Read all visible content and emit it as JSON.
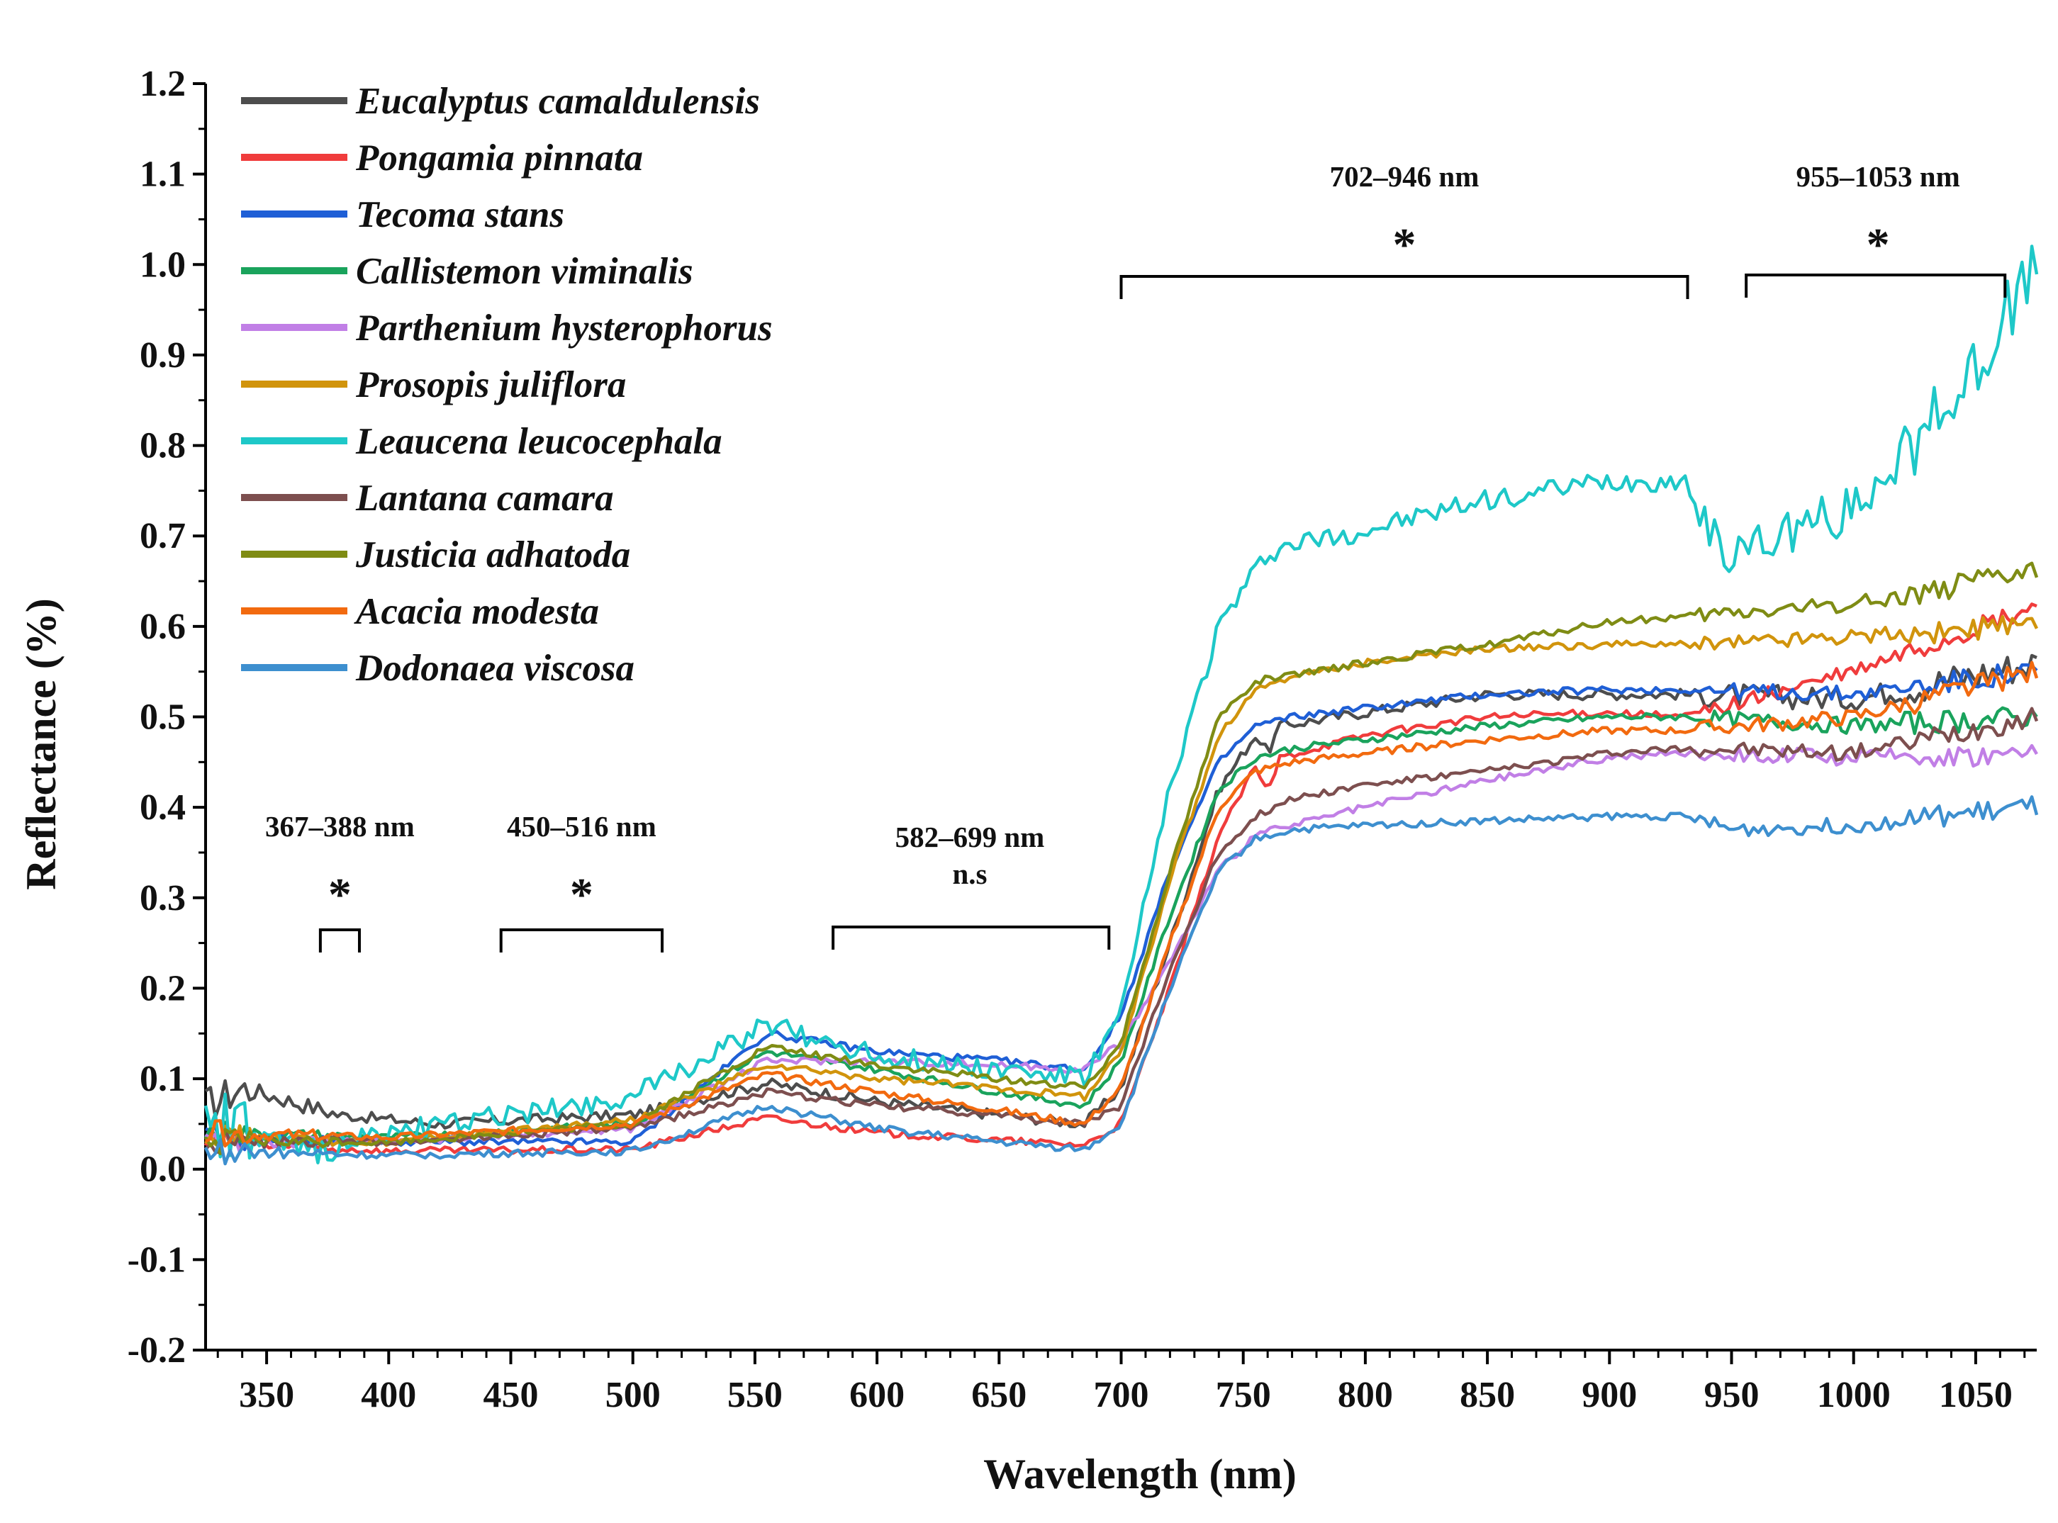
{
  "chart_data": {
    "type": "line",
    "title": "",
    "xlabel": "Wavelength (nm)",
    "ylabel": "Reflectance (%)",
    "xlim": [
      325,
      1075
    ],
    "ylim": [
      -0.2,
      1.2
    ],
    "xticks": [
      350,
      400,
      450,
      500,
      550,
      600,
      650,
      700,
      750,
      800,
      850,
      900,
      950,
      1000,
      1050
    ],
    "yticks": [
      "-0.2",
      "-0.1",
      "0.0",
      "0.1",
      "0.2",
      "0.3",
      "0.4",
      "0.5",
      "0.6",
      "0.7",
      "0.8",
      "0.9",
      "1.0",
      "1.1",
      "1.2"
    ],
    "legend_position": "top-left",
    "series": [
      {
        "name": "Eucalyptus camaldulensis",
        "color": "#4d4d4d",
        "noise": 0.006,
        "points": [
          [
            325,
            0.07
          ],
          [
            340,
            0.09
          ],
          [
            380,
            0.06
          ],
          [
            420,
            0.05
          ],
          [
            500,
            0.06
          ],
          [
            555,
            0.095
          ],
          [
            600,
            0.075
          ],
          [
            650,
            0.06
          ],
          [
            685,
            0.05
          ],
          [
            700,
            0.09
          ],
          [
            720,
            0.25
          ],
          [
            740,
            0.42
          ],
          [
            755,
            0.48
          ],
          [
            760,
            0.46
          ],
          [
            765,
            0.49
          ],
          [
            800,
            0.505
          ],
          [
            850,
            0.525
          ],
          [
            900,
            0.525
          ],
          [
            930,
            0.525
          ],
          [
            1000,
            0.52
          ],
          [
            1075,
            0.56
          ]
        ]
      },
      {
        "name": "Pongamia pinnata",
        "color": "#f03c3c",
        "noise": 0.004,
        "points": [
          [
            325,
            0.03
          ],
          [
            360,
            0.025
          ],
          [
            400,
            0.02
          ],
          [
            500,
            0.022
          ],
          [
            555,
            0.057
          ],
          [
            600,
            0.04
          ],
          [
            650,
            0.032
          ],
          [
            685,
            0.027
          ],
          [
            700,
            0.05
          ],
          [
            720,
            0.2
          ],
          [
            740,
            0.37
          ],
          [
            755,
            0.445
          ],
          [
            760,
            0.415
          ],
          [
            765,
            0.455
          ],
          [
            800,
            0.48
          ],
          [
            850,
            0.5
          ],
          [
            900,
            0.505
          ],
          [
            930,
            0.5
          ],
          [
            1000,
            0.55
          ],
          [
            1075,
            0.62
          ]
        ]
      },
      {
        "name": "Tecoma stans",
        "color": "#1f5fd6",
        "noise": 0.004,
        "points": [
          [
            325,
            0.035
          ],
          [
            400,
            0.03
          ],
          [
            500,
            0.03
          ],
          [
            555,
            0.15
          ],
          [
            600,
            0.13
          ],
          [
            650,
            0.12
          ],
          [
            685,
            0.11
          ],
          [
            700,
            0.17
          ],
          [
            720,
            0.33
          ],
          [
            740,
            0.45
          ],
          [
            755,
            0.49
          ],
          [
            770,
            0.5
          ],
          [
            800,
            0.51
          ],
          [
            850,
            0.525
          ],
          [
            900,
            0.53
          ],
          [
            930,
            0.53
          ],
          [
            1000,
            0.525
          ],
          [
            1075,
            0.55
          ]
        ]
      },
      {
        "name": "Callistemon viminalis",
        "color": "#1aa35c",
        "noise": 0.004,
        "points": [
          [
            325,
            0.04
          ],
          [
            400,
            0.035
          ],
          [
            500,
            0.05
          ],
          [
            555,
            0.13
          ],
          [
            600,
            0.11
          ],
          [
            650,
            0.085
          ],
          [
            685,
            0.07
          ],
          [
            700,
            0.12
          ],
          [
            720,
            0.28
          ],
          [
            740,
            0.42
          ],
          [
            755,
            0.455
          ],
          [
            770,
            0.465
          ],
          [
            800,
            0.475
          ],
          [
            850,
            0.49
          ],
          [
            900,
            0.5
          ],
          [
            930,
            0.5
          ],
          [
            1000,
            0.49
          ],
          [
            1075,
            0.5
          ]
        ]
      },
      {
        "name": "Parthenium hysterophorus",
        "color": "#c17fe6",
        "noise": 0.004,
        "points": [
          [
            325,
            0.03
          ],
          [
            400,
            0.03
          ],
          [
            500,
            0.045
          ],
          [
            555,
            0.12
          ],
          [
            600,
            0.12
          ],
          [
            650,
            0.115
          ],
          [
            685,
            0.11
          ],
          [
            700,
            0.14
          ],
          [
            720,
            0.23
          ],
          [
            740,
            0.33
          ],
          [
            755,
            0.37
          ],
          [
            770,
            0.38
          ],
          [
            800,
            0.4
          ],
          [
            850,
            0.43
          ],
          [
            900,
            0.455
          ],
          [
            930,
            0.46
          ],
          [
            1000,
            0.455
          ],
          [
            1075,
            0.46
          ]
        ]
      },
      {
        "name": "Prosopis juliflora",
        "color": "#d1940c",
        "noise": 0.004,
        "points": [
          [
            325,
            0.035
          ],
          [
            400,
            0.03
          ],
          [
            500,
            0.055
          ],
          [
            555,
            0.115
          ],
          [
            600,
            0.1
          ],
          [
            650,
            0.09
          ],
          [
            685,
            0.08
          ],
          [
            700,
            0.13
          ],
          [
            720,
            0.32
          ],
          [
            740,
            0.48
          ],
          [
            755,
            0.53
          ],
          [
            770,
            0.545
          ],
          [
            800,
            0.56
          ],
          [
            850,
            0.575
          ],
          [
            900,
            0.58
          ],
          [
            930,
            0.58
          ],
          [
            1000,
            0.59
          ],
          [
            1075,
            0.6
          ]
        ]
      },
      {
        "name": "Leaucena leucocephala",
        "color": "#1ec8c8",
        "noise": 0.012,
        "points": [
          [
            325,
            0.05
          ],
          [
            360,
            0.02
          ],
          [
            400,
            0.04
          ],
          [
            450,
            0.06
          ],
          [
            500,
            0.08
          ],
          [
            555,
            0.16
          ],
          [
            600,
            0.125
          ],
          [
            650,
            0.11
          ],
          [
            685,
            0.1
          ],
          [
            700,
            0.17
          ],
          [
            720,
            0.42
          ],
          [
            740,
            0.6
          ],
          [
            755,
            0.66
          ],
          [
            760,
            0.68
          ],
          [
            770,
            0.69
          ],
          [
            800,
            0.705
          ],
          [
            850,
            0.74
          ],
          [
            900,
            0.76
          ],
          [
            930,
            0.76
          ],
          [
            950,
            0.68
          ],
          [
            1000,
            0.73
          ],
          [
            1040,
            0.85
          ],
          [
            1075,
            1.0
          ]
        ]
      },
      {
        "name": "Lantana camara",
        "color": "#7d4f4f",
        "noise": 0.004,
        "points": [
          [
            325,
            0.03
          ],
          [
            400,
            0.03
          ],
          [
            500,
            0.045
          ],
          [
            555,
            0.085
          ],
          [
            600,
            0.07
          ],
          [
            650,
            0.06
          ],
          [
            685,
            0.05
          ],
          [
            700,
            0.07
          ],
          [
            720,
            0.22
          ],
          [
            740,
            0.35
          ],
          [
            755,
            0.39
          ],
          [
            770,
            0.41
          ],
          [
            800,
            0.425
          ],
          [
            850,
            0.44
          ],
          [
            900,
            0.46
          ],
          [
            930,
            0.465
          ],
          [
            1000,
            0.46
          ],
          [
            1075,
            0.5
          ]
        ]
      },
      {
        "name": "Justicia adhatoda",
        "color": "#7f8c14",
        "noise": 0.004,
        "points": [
          [
            325,
            0.03
          ],
          [
            400,
            0.03
          ],
          [
            500,
            0.05
          ],
          [
            555,
            0.135
          ],
          [
            600,
            0.115
          ],
          [
            650,
            0.1
          ],
          [
            685,
            0.09
          ],
          [
            700,
            0.14
          ],
          [
            720,
            0.33
          ],
          [
            740,
            0.5
          ],
          [
            755,
            0.54
          ],
          [
            770,
            0.545
          ],
          [
            800,
            0.56
          ],
          [
            850,
            0.58
          ],
          [
            900,
            0.605
          ],
          [
            930,
            0.61
          ],
          [
            1000,
            0.625
          ],
          [
            1075,
            0.66
          ]
        ]
      },
      {
        "name": "Acacia modesta",
        "color": "#f26a0f",
        "noise": 0.004,
        "points": [
          [
            325,
            0.04
          ],
          [
            400,
            0.035
          ],
          [
            500,
            0.05
          ],
          [
            555,
            0.105
          ],
          [
            600,
            0.085
          ],
          [
            650,
            0.065
          ],
          [
            685,
            0.05
          ],
          [
            700,
            0.09
          ],
          [
            720,
            0.25
          ],
          [
            740,
            0.4
          ],
          [
            755,
            0.44
          ],
          [
            770,
            0.45
          ],
          [
            800,
            0.46
          ],
          [
            850,
            0.475
          ],
          [
            900,
            0.485
          ],
          [
            930,
            0.485
          ],
          [
            1000,
            0.5
          ],
          [
            1075,
            0.55
          ]
        ]
      },
      {
        "name": "Dodonaea viscosa",
        "color": "#3d8fcf",
        "noise": 0.004,
        "points": [
          [
            325,
            0.02
          ],
          [
            400,
            0.015
          ],
          [
            500,
            0.02
          ],
          [
            555,
            0.07
          ],
          [
            600,
            0.045
          ],
          [
            650,
            0.03
          ],
          [
            685,
            0.022
          ],
          [
            700,
            0.05
          ],
          [
            720,
            0.2
          ],
          [
            740,
            0.33
          ],
          [
            755,
            0.365
          ],
          [
            770,
            0.375
          ],
          [
            800,
            0.38
          ],
          [
            850,
            0.385
          ],
          [
            900,
            0.39
          ],
          [
            930,
            0.39
          ],
          [
            950,
            0.375
          ],
          [
            1000,
            0.38
          ],
          [
            1075,
            0.4
          ]
        ]
      }
    ],
    "annotations": [
      {
        "range_label": "367–388 nm",
        "mark": "*",
        "x_start": 372,
        "x_end": 388,
        "label_x": 380
      },
      {
        "range_label": "450–516 nm",
        "mark": "*",
        "x_start": 446,
        "x_end": 512,
        "label_x": 479
      },
      {
        "range_label": "582–699 nm",
        "mark": "n.s",
        "x_start": 582,
        "x_end": 695,
        "label_x": 638
      },
      {
        "range_label": "702–946 nm",
        "mark": "*",
        "x_start": 700,
        "x_end": 932,
        "label_x": 816
      },
      {
        "range_label": "955–1053 nm",
        "mark": "*",
        "x_start": 956,
        "x_end": 1062,
        "label_x": 1010
      }
    ]
  }
}
